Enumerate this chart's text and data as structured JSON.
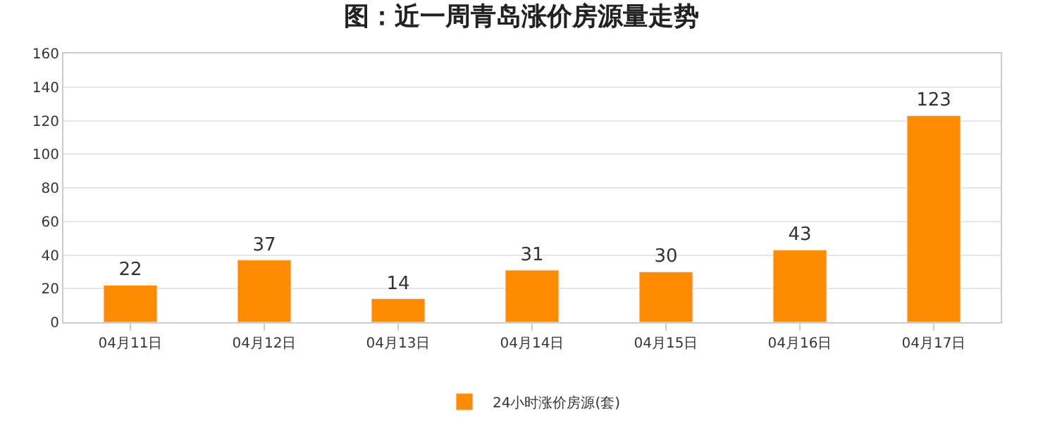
{
  "chart_data": {
    "type": "bar",
    "title": "图：近一周青岛涨价房源量走势",
    "categories": [
      "04月11日",
      "04月12日",
      "04月13日",
      "04月14日",
      "04月15日",
      "04月16日",
      "04月17日"
    ],
    "series": [
      {
        "name": "24小时涨价房源(套)",
        "color": "#ff8c00",
        "values": [
          22,
          37,
          14,
          31,
          30,
          43,
          123
        ]
      }
    ],
    "ylim": [
      0,
      160
    ],
    "yticks": [
      0,
      20,
      40,
      60,
      80,
      100,
      120,
      140,
      160
    ],
    "grid": "y",
    "legend": "bottom",
    "data_labels": true
  }
}
